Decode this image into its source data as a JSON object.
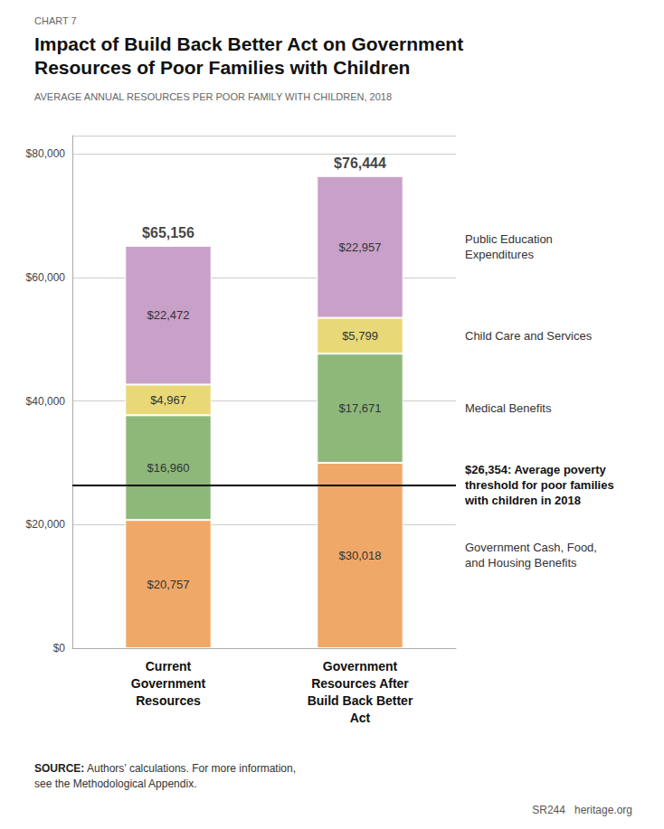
{
  "chart_data": {
    "type": "bar",
    "chart_label": "CHART 7",
    "title": "Impact of Build Back Better Act on Government\nResources of Poor Families with Children",
    "subtitle": "AVERAGE ANNUAL RESOURCES PER POOR FAMILY WITH CHILDREN, 2018",
    "categories": [
      "Current\nGovernment\nResources",
      "Government\nResources After\nBuild Back Better\nAct"
    ],
    "series": [
      {
        "name": "Government Cash, Food,\nand Housing Benefits",
        "color": "#f0a868",
        "values": [
          20757,
          30018
        ],
        "value_labels": [
          "$20,757",
          "$30,018"
        ]
      },
      {
        "name": "Medical Benefits",
        "color": "#8db87a",
        "values": [
          16960,
          17671
        ],
        "value_labels": [
          "$16,960",
          "$17,671"
        ]
      },
      {
        "name": "Child Care and Services",
        "color": "#e8d878",
        "values": [
          4967,
          5799
        ],
        "value_labels": [
          "$4,967",
          "$5,799"
        ]
      },
      {
        "name": "Public Education\nExpenditures",
        "color": "#c9a0c8",
        "values": [
          22472,
          22957
        ],
        "value_labels": [
          "$22,472",
          "$22,957"
        ]
      }
    ],
    "totals": [
      65156,
      76444
    ],
    "total_labels": [
      "$65,156",
      "$76,444"
    ],
    "poverty_line": 26354,
    "poverty_label": "$26,354: Average poverty\nthreshold for poor families\nwith children in 2018",
    "ylim": [
      0,
      83000
    ],
    "yticks": [
      {
        "value": 0,
        "label": "$0"
      },
      {
        "value": 20000,
        "label": "$20,000"
      },
      {
        "value": 40000,
        "label": "$40,000"
      },
      {
        "value": 60000,
        "label": "$60,000"
      },
      {
        "value": 80000,
        "label": "$80,000"
      }
    ],
    "stacked": true,
    "data_labels": true,
    "grid": true,
    "source_bold": "SOURCE:",
    "source_text": " Authors’ calculations. For more information,\nsee the Methodological Appendix.",
    "footer_right": "SR244   heritage.org"
  }
}
